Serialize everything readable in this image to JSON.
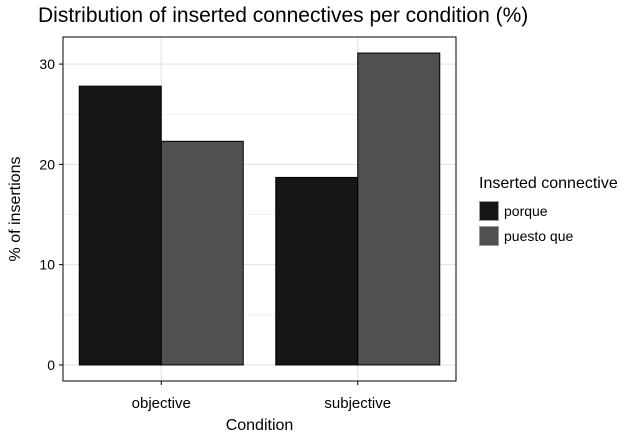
{
  "chart_data": {
    "type": "bar",
    "title": "Distribution of inserted connectives per condition (%)",
    "xlabel": "Condition",
    "ylabel": "% of insertions",
    "categories": [
      "objective",
      "subjective"
    ],
    "series": [
      {
        "name": "porque",
        "values": [
          27.8,
          18.7
        ],
        "color": "#161616"
      },
      {
        "name": "puesto que",
        "values": [
          22.3,
          31.1
        ],
        "color": "#505050"
      }
    ],
    "yticks": [
      0,
      10,
      20,
      30
    ],
    "ylim": [
      -1.6,
      32.7
    ],
    "grid": true,
    "legend": {
      "title": "Inserted connective",
      "position": "right"
    }
  }
}
